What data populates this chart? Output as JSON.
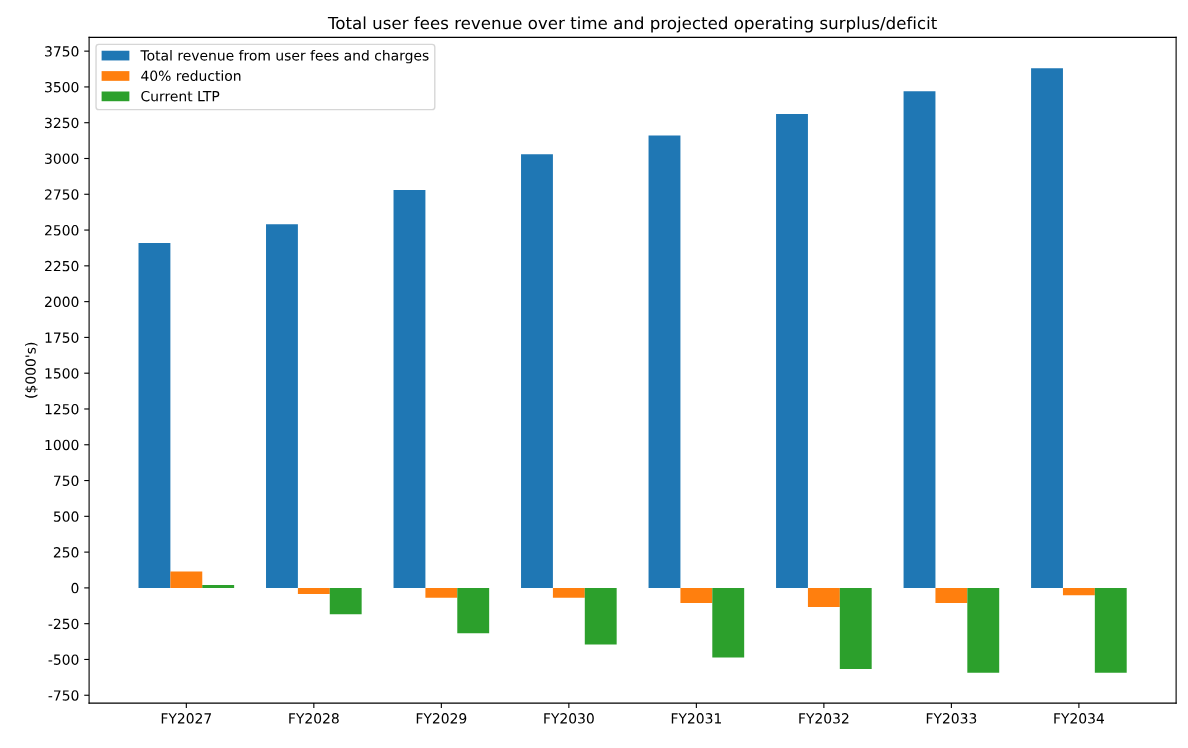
{
  "chart_data": {
    "type": "bar",
    "title": "Total user fees revenue over time and projected operating surplus/deficit",
    "ylabel": "($000's)",
    "categories": [
      "FY2027",
      "FY2028",
      "FY2029",
      "FY2030",
      "FY2031",
      "FY2032",
      "FY2033",
      "FY2034"
    ],
    "series": [
      {
        "name": "Total revenue from user fees and charges",
        "color": "#1f77b4",
        "values": [
          2410,
          2540,
          2780,
          3030,
          3160,
          3310,
          3470,
          3630
        ]
      },
      {
        "name": "40% reduction",
        "color": "#ff7f0e",
        "values": [
          115,
          -42,
          -69,
          -69,
          -106,
          -133,
          -106,
          -52
        ]
      },
      {
        "name": "Current LTP",
        "color": "#2ca02c",
        "values": [
          20,
          -184,
          -317,
          -395,
          -486,
          -567,
          -592,
          -592
        ]
      }
    ],
    "ylim": [
      -805,
      3846
    ],
    "yticks": [
      -750,
      -500,
      -250,
      0,
      250,
      500,
      750,
      1000,
      1250,
      1500,
      1750,
      2000,
      2250,
      2500,
      2750,
      3000,
      3250,
      3500,
      3750
    ],
    "legend": "top left",
    "grid": false
  }
}
